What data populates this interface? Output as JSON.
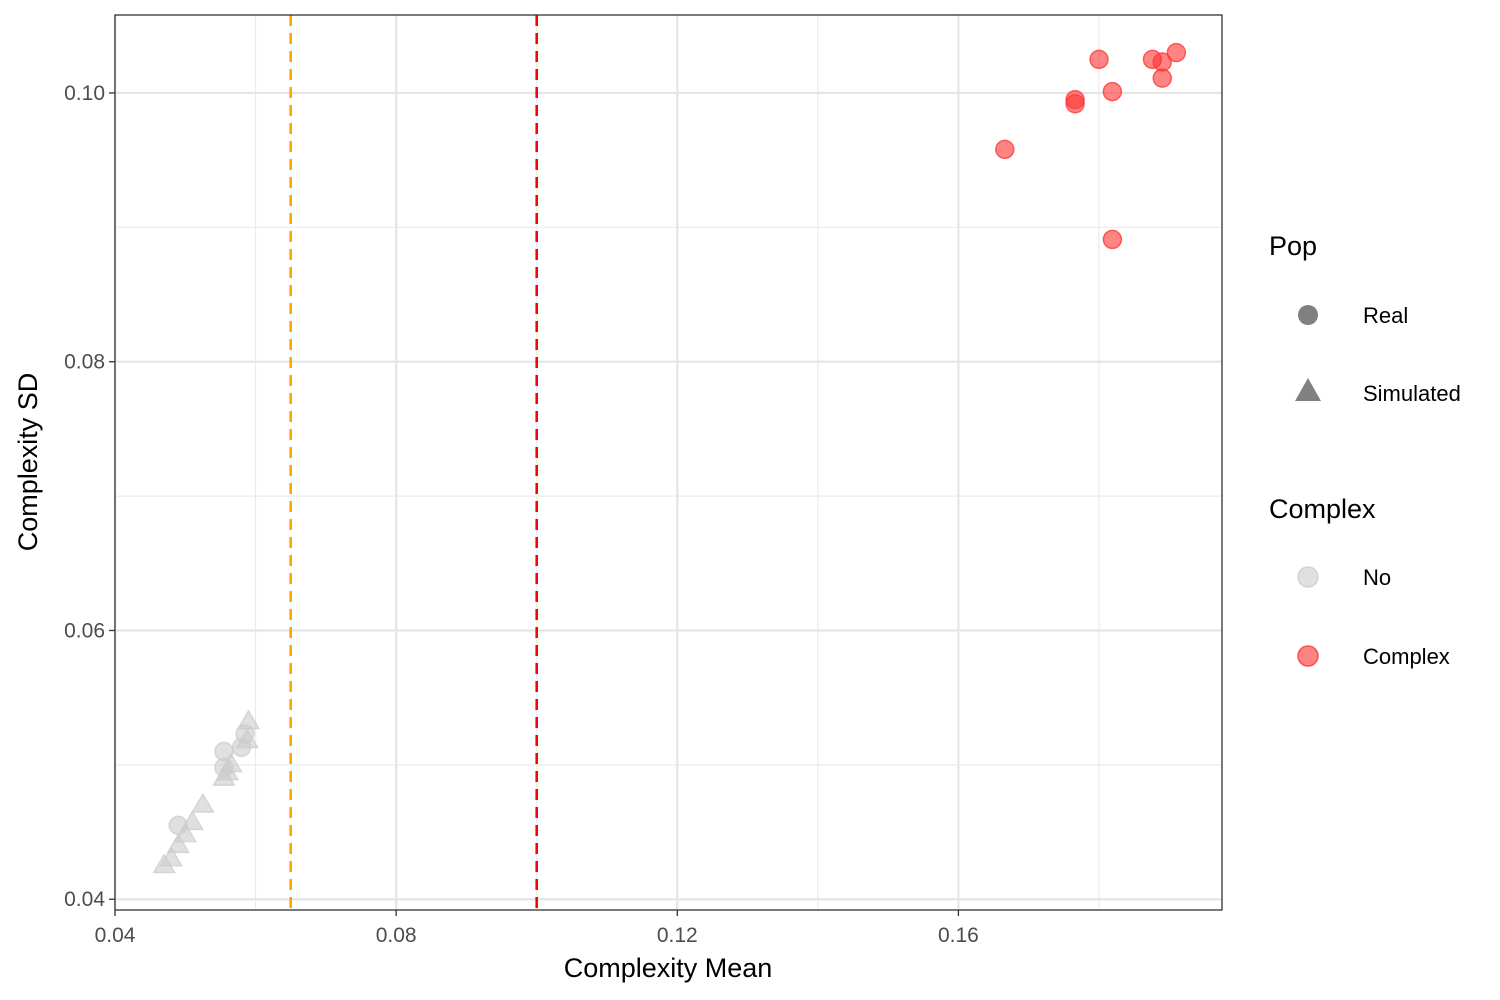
{
  "chart_data": {
    "type": "scatter",
    "xlabel": "Complexity Mean",
    "ylabel": "Complexity SD",
    "xlim": [
      0.04,
      0.1975
    ],
    "ylim": [
      0.0392,
      0.1058
    ],
    "x_ticks": [
      0.04,
      0.08,
      0.12,
      0.16
    ],
    "x_tick_labels": [
      "0.04",
      "0.08",
      "0.12",
      "0.16"
    ],
    "x_minor_ticks": [
      0.06,
      0.1,
      0.14,
      0.18
    ],
    "y_ticks": [
      0.04,
      0.06,
      0.08,
      0.1
    ],
    "y_tick_labels": [
      "0.04",
      "0.06",
      "0.08",
      "0.10"
    ],
    "y_minor_ticks": [
      0.05,
      0.07,
      0.09
    ],
    "grid": true,
    "vlines": [
      {
        "x": 0.065,
        "color": "#FFA500",
        "style": "dashed"
      },
      {
        "x": 0.1,
        "color": "#FF0000",
        "style": "dashed"
      }
    ],
    "colors": {
      "No": "#cccccc",
      "Complex": "#ff3333"
    },
    "legend": {
      "placement": "right",
      "groups": [
        {
          "title": "Pop",
          "items": [
            {
              "label": "Real",
              "shape": "circle"
            },
            {
              "label": "Simulated",
              "shape": "triangle"
            }
          ]
        },
        {
          "title": "Complex",
          "items": [
            {
              "label": "No",
              "color_key": "No"
            },
            {
              "label": "Complex",
              "color_key": "Complex"
            }
          ]
        }
      ]
    },
    "series": [
      {
        "pop": "Real",
        "complex": "Complex",
        "points": [
          [
            0.1666,
            0.0958
          ],
          [
            0.1766,
            0.0995
          ],
          [
            0.1766,
            0.0992
          ],
          [
            0.18,
            0.1025
          ],
          [
            0.1819,
            0.1001
          ],
          [
            0.1819,
            0.0891
          ],
          [
            0.1876,
            0.1025
          ],
          [
            0.189,
            0.1023
          ],
          [
            0.189,
            0.1011
          ],
          [
            0.191,
            0.103
          ]
        ]
      },
      {
        "pop": "Real",
        "complex": "No",
        "points": [
          [
            0.049,
            0.0455
          ],
          [
            0.0555,
            0.051
          ],
          [
            0.058,
            0.0513
          ],
          [
            0.0585,
            0.0523
          ],
          [
            0.0555,
            0.0498
          ]
        ]
      },
      {
        "pop": "Simulated",
        "complex": "No",
        "points": [
          [
            0.047,
            0.0425
          ],
          [
            0.048,
            0.043
          ],
          [
            0.049,
            0.044
          ],
          [
            0.05,
            0.0448
          ],
          [
            0.051,
            0.0457
          ],
          [
            0.0525,
            0.047
          ],
          [
            0.0555,
            0.049
          ],
          [
            0.056,
            0.0494
          ],
          [
            0.0565,
            0.05
          ],
          [
            0.0588,
            0.0518
          ],
          [
            0.059,
            0.0532
          ]
        ]
      }
    ]
  }
}
